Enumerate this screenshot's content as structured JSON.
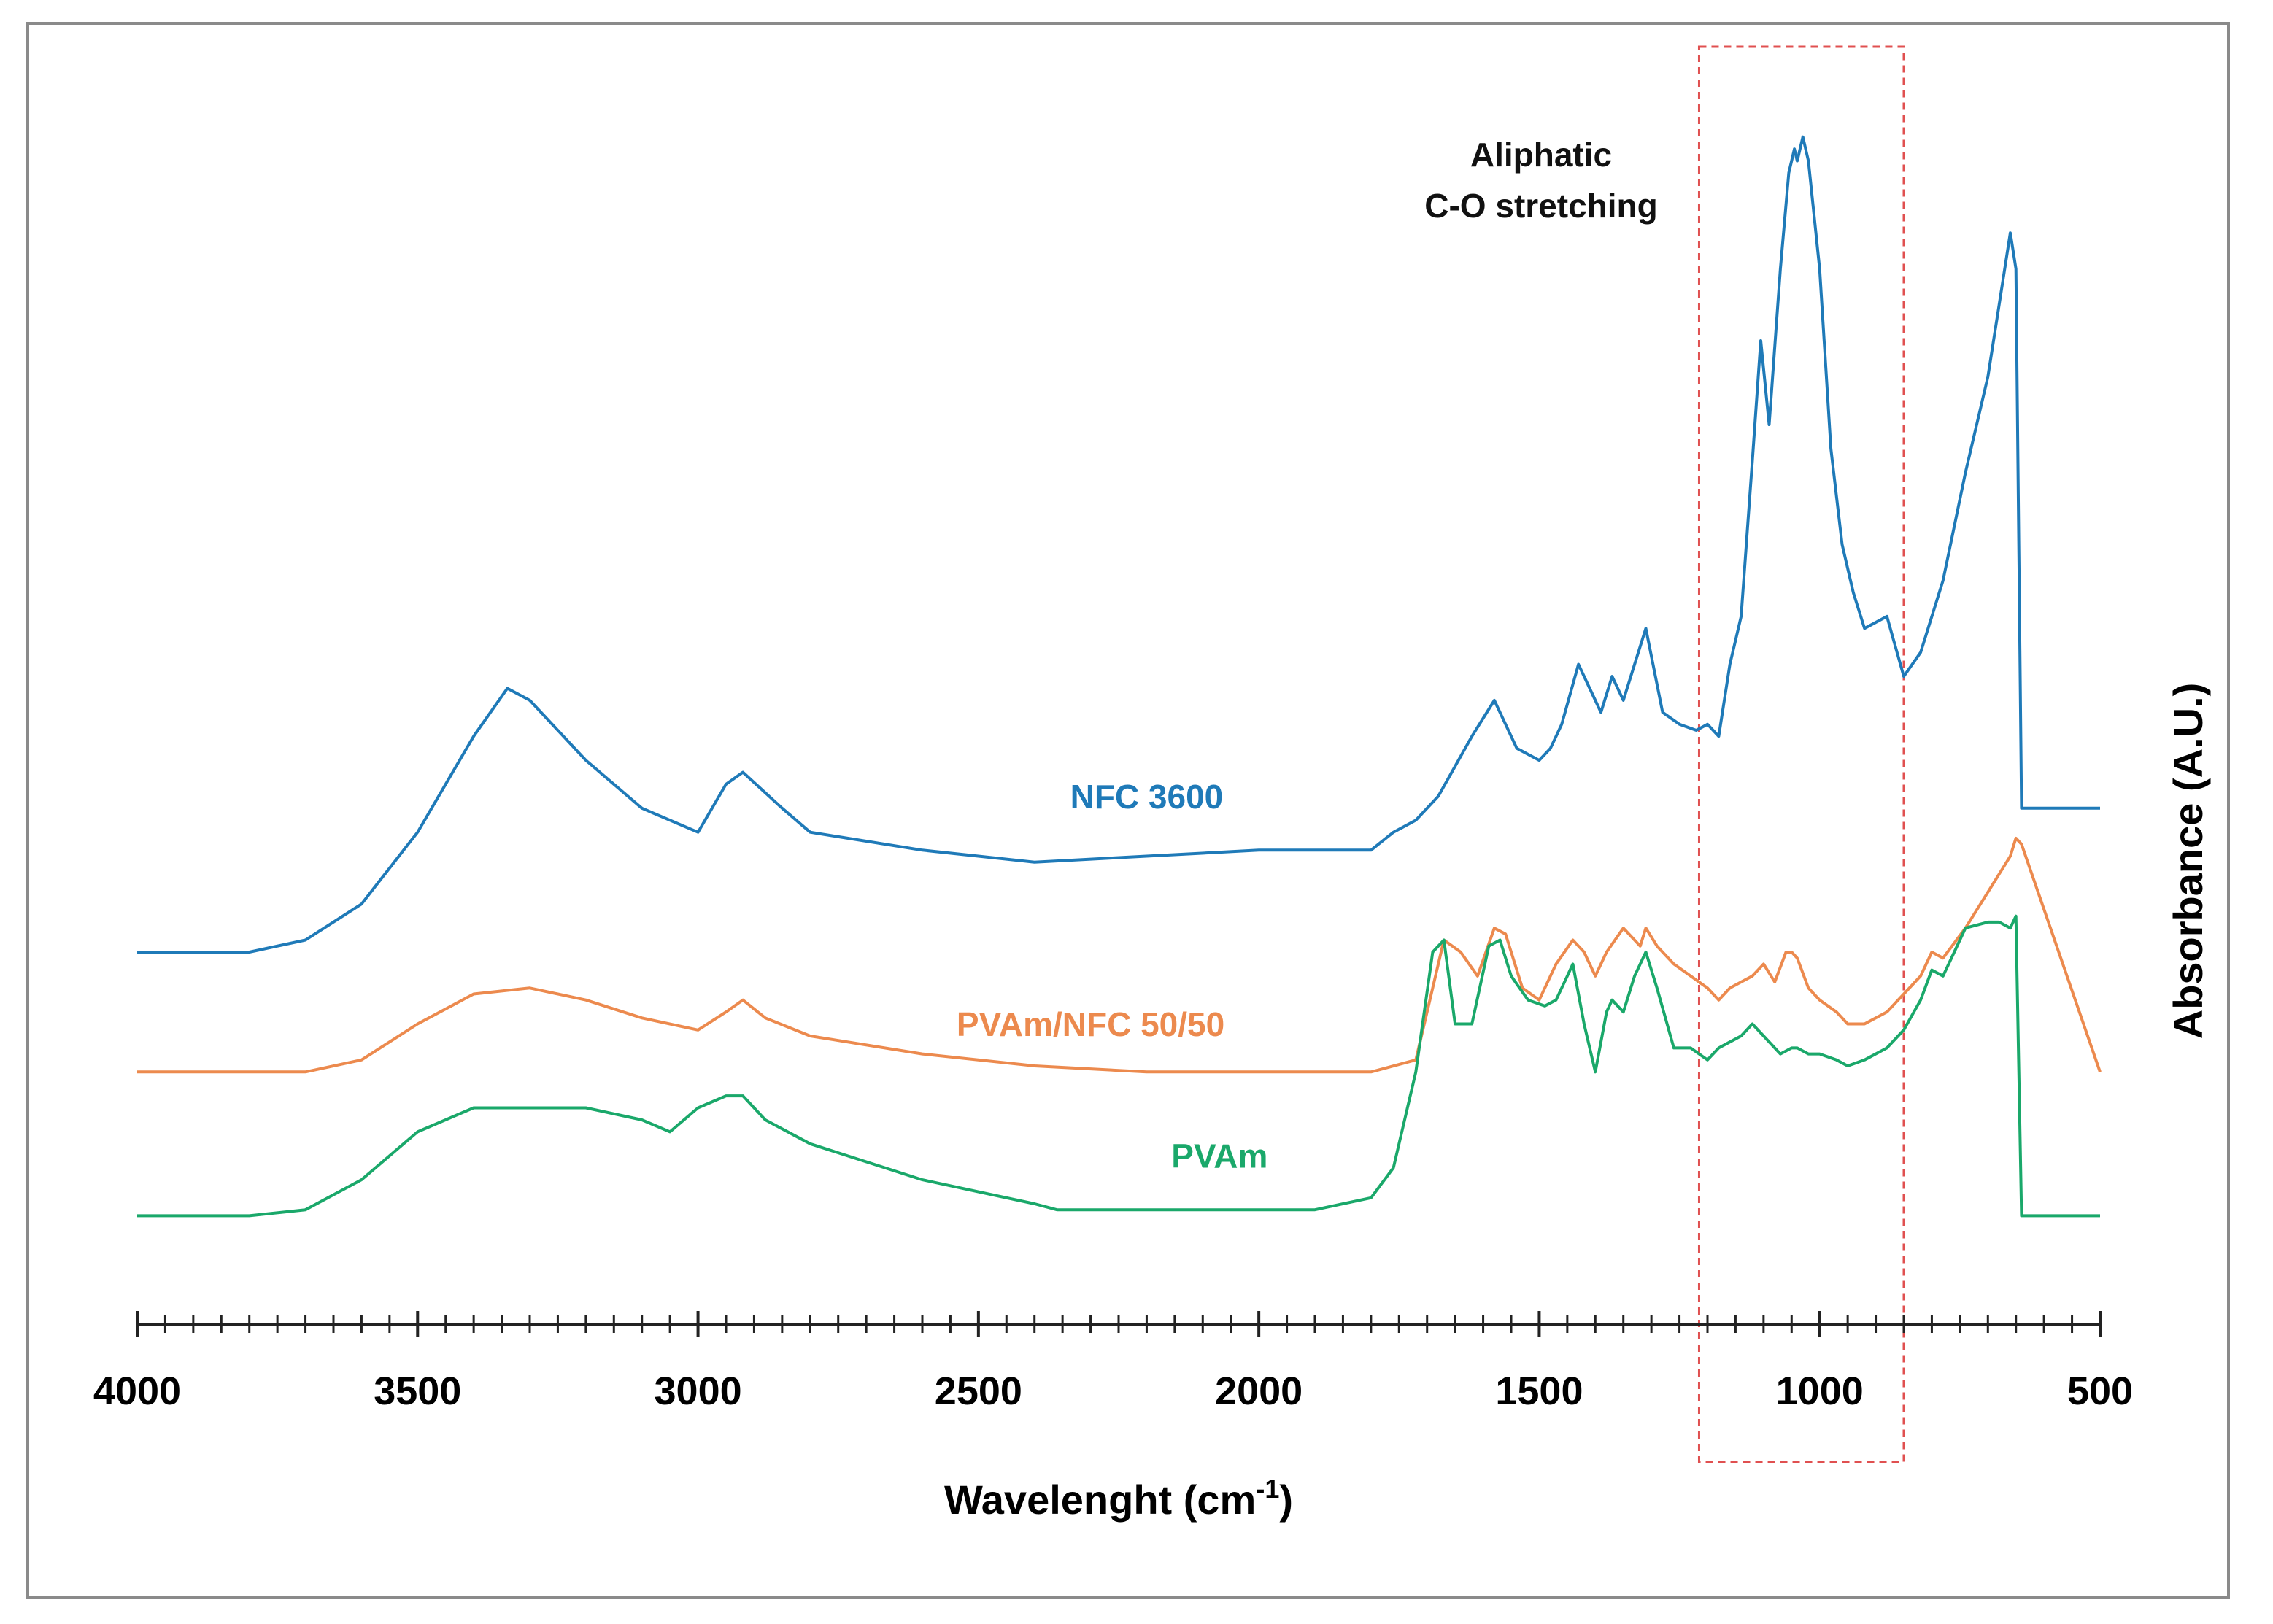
{
  "chart_data": {
    "type": "line",
    "title": "",
    "xlabel": "Wavelenght (cm",
    "xlabel_sup": "-1",
    "xlabel_close": ")",
    "ylabel": "Absorbance (A.U.)",
    "xlim": [
      4000,
      500
    ],
    "x_reversed": true,
    "ylim": [
      0,
      100
    ],
    "ticks": [
      4000,
      3500,
      3000,
      2500,
      2000,
      1500,
      1000,
      500
    ],
    "tick_labels": [
      "4000",
      "3500",
      "3000",
      "2500",
      "2000",
      "1500",
      "1000",
      "500"
    ],
    "minor_tick_step": 50,
    "grid": false,
    "annotation": {
      "lines": [
        "Aliphatic",
        "C-O stretching"
      ],
      "x_range": [
        1215,
        850
      ]
    },
    "series": [
      {
        "name": "NFC 3600",
        "color": "#1f7ab8",
        "label_x": 2200,
        "label_y": 40,
        "x": [
          4000,
          3900,
          3800,
          3700,
          3600,
          3500,
          3400,
          3340,
          3300,
          3200,
          3100,
          3000,
          2950,
          2920,
          2850,
          2800,
          2600,
          2400,
          2200,
          2000,
          1800,
          1760,
          1720,
          1680,
          1620,
          1580,
          1540,
          1500,
          1480,
          1460,
          1430,
          1410,
          1390,
          1370,
          1350,
          1330,
          1310,
          1280,
          1250,
          1220,
          1200,
          1180,
          1160,
          1140,
          1120,
          1105,
          1090,
          1070,
          1055,
          1045,
          1040,
          1030,
          1020,
          1000,
          980,
          960,
          940,
          920,
          880,
          850,
          820,
          780,
          740,
          700,
          680,
          660,
          650,
          640,
          500
        ],
        "y": [
          28,
          28,
          28,
          29,
          32,
          38,
          46,
          50,
          49,
          44,
          40,
          38,
          42,
          43,
          40,
          38,
          36.5,
          35.5,
          36,
          36.5,
          36.5,
          38,
          39,
          41,
          46,
          49,
          45,
          44,
          45,
          47,
          52,
          50,
          48,
          51,
          49,
          52,
          55,
          48,
          47,
          46.5,
          47,
          46,
          52,
          56,
          69,
          79,
          72,
          85,
          93,
          95,
          94,
          96,
          94,
          85,
          70,
          62,
          58,
          55,
          56,
          51,
          53,
          59,
          68,
          76,
          82,
          88,
          85,
          40,
          40
        ]
      },
      {
        "name": "PVAm/NFC 50/50",
        "color": "#ec8a4e",
        "label_x": 2300,
        "label_y": 21,
        "x": [
          4000,
          3800,
          3700,
          3600,
          3500,
          3400,
          3300,
          3200,
          3100,
          3000,
          2950,
          2920,
          2880,
          2800,
          2600,
          2400,
          2200,
          2000,
          1800,
          1720,
          1690,
          1670,
          1640,
          1610,
          1580,
          1560,
          1530,
          1500,
          1470,
          1440,
          1420,
          1400,
          1380,
          1350,
          1320,
          1310,
          1290,
          1260,
          1230,
          1200,
          1180,
          1160,
          1140,
          1120,
          1100,
          1080,
          1060,
          1050,
          1040,
          1020,
          1000,
          970,
          950,
          920,
          880,
          850,
          820,
          800,
          780,
          740,
          700,
          660,
          650,
          640,
          500
        ],
        "y": [
          18,
          18,
          18,
          19,
          22,
          24.5,
          25,
          24,
          22.5,
          21.5,
          23,
          24,
          22.5,
          21,
          19.5,
          18.5,
          18,
          18,
          18,
          19,
          25,
          29,
          28,
          26,
          30,
          29.5,
          25,
          24,
          27,
          29,
          28,
          26,
          28,
          30,
          28.5,
          30,
          28.5,
          27,
          26,
          25,
          24,
          25,
          25.5,
          26,
          27,
          25.5,
          28,
          28,
          27.5,
          25,
          24,
          23,
          22,
          22,
          23,
          24.5,
          26,
          28,
          27.5,
          30,
          33,
          36,
          37.5,
          37,
          18
        ]
      },
      {
        "name": "PVAm",
        "color": "#1aa86a",
        "label_x": 2070,
        "label_y": 10,
        "x": [
          4000,
          3800,
          3700,
          3600,
          3500,
          3400,
          3300,
          3200,
          3100,
          3050,
          3000,
          2950,
          2920,
          2880,
          2800,
          2600,
          2400,
          2360,
          2200,
          2000,
          1900,
          1800,
          1760,
          1720,
          1690,
          1670,
          1650,
          1620,
          1590,
          1570,
          1550,
          1520,
          1490,
          1470,
          1450,
          1440,
          1420,
          1400,
          1380,
          1370,
          1350,
          1330,
          1310,
          1290,
          1260,
          1230,
          1200,
          1180,
          1160,
          1140,
          1120,
          1100,
          1070,
          1050,
          1040,
          1020,
          1000,
          970,
          950,
          920,
          880,
          850,
          820,
          800,
          780,
          760,
          740,
          700,
          680,
          660,
          650,
          640,
          500
        ],
        "y": [
          6,
          6,
          6.5,
          9,
          13,
          15,
          15,
          15,
          14,
          13,
          15,
          16,
          16,
          14,
          12,
          9,
          7,
          6.5,
          6.5,
          6.5,
          6.5,
          7.5,
          10,
          18,
          28,
          29,
          22,
          22,
          28.5,
          29,
          26,
          24,
          23.5,
          24,
          26,
          27,
          22,
          18,
          23,
          24,
          23,
          26,
          28,
          25,
          20,
          20,
          19,
          20,
          20.5,
          21,
          22,
          21,
          19.5,
          20,
          20,
          19.5,
          19.5,
          19,
          18.5,
          19,
          20,
          21.5,
          24,
          26.5,
          26,
          28,
          30,
          30.5,
          30.5,
          30,
          31,
          6,
          6
        ]
      }
    ]
  }
}
